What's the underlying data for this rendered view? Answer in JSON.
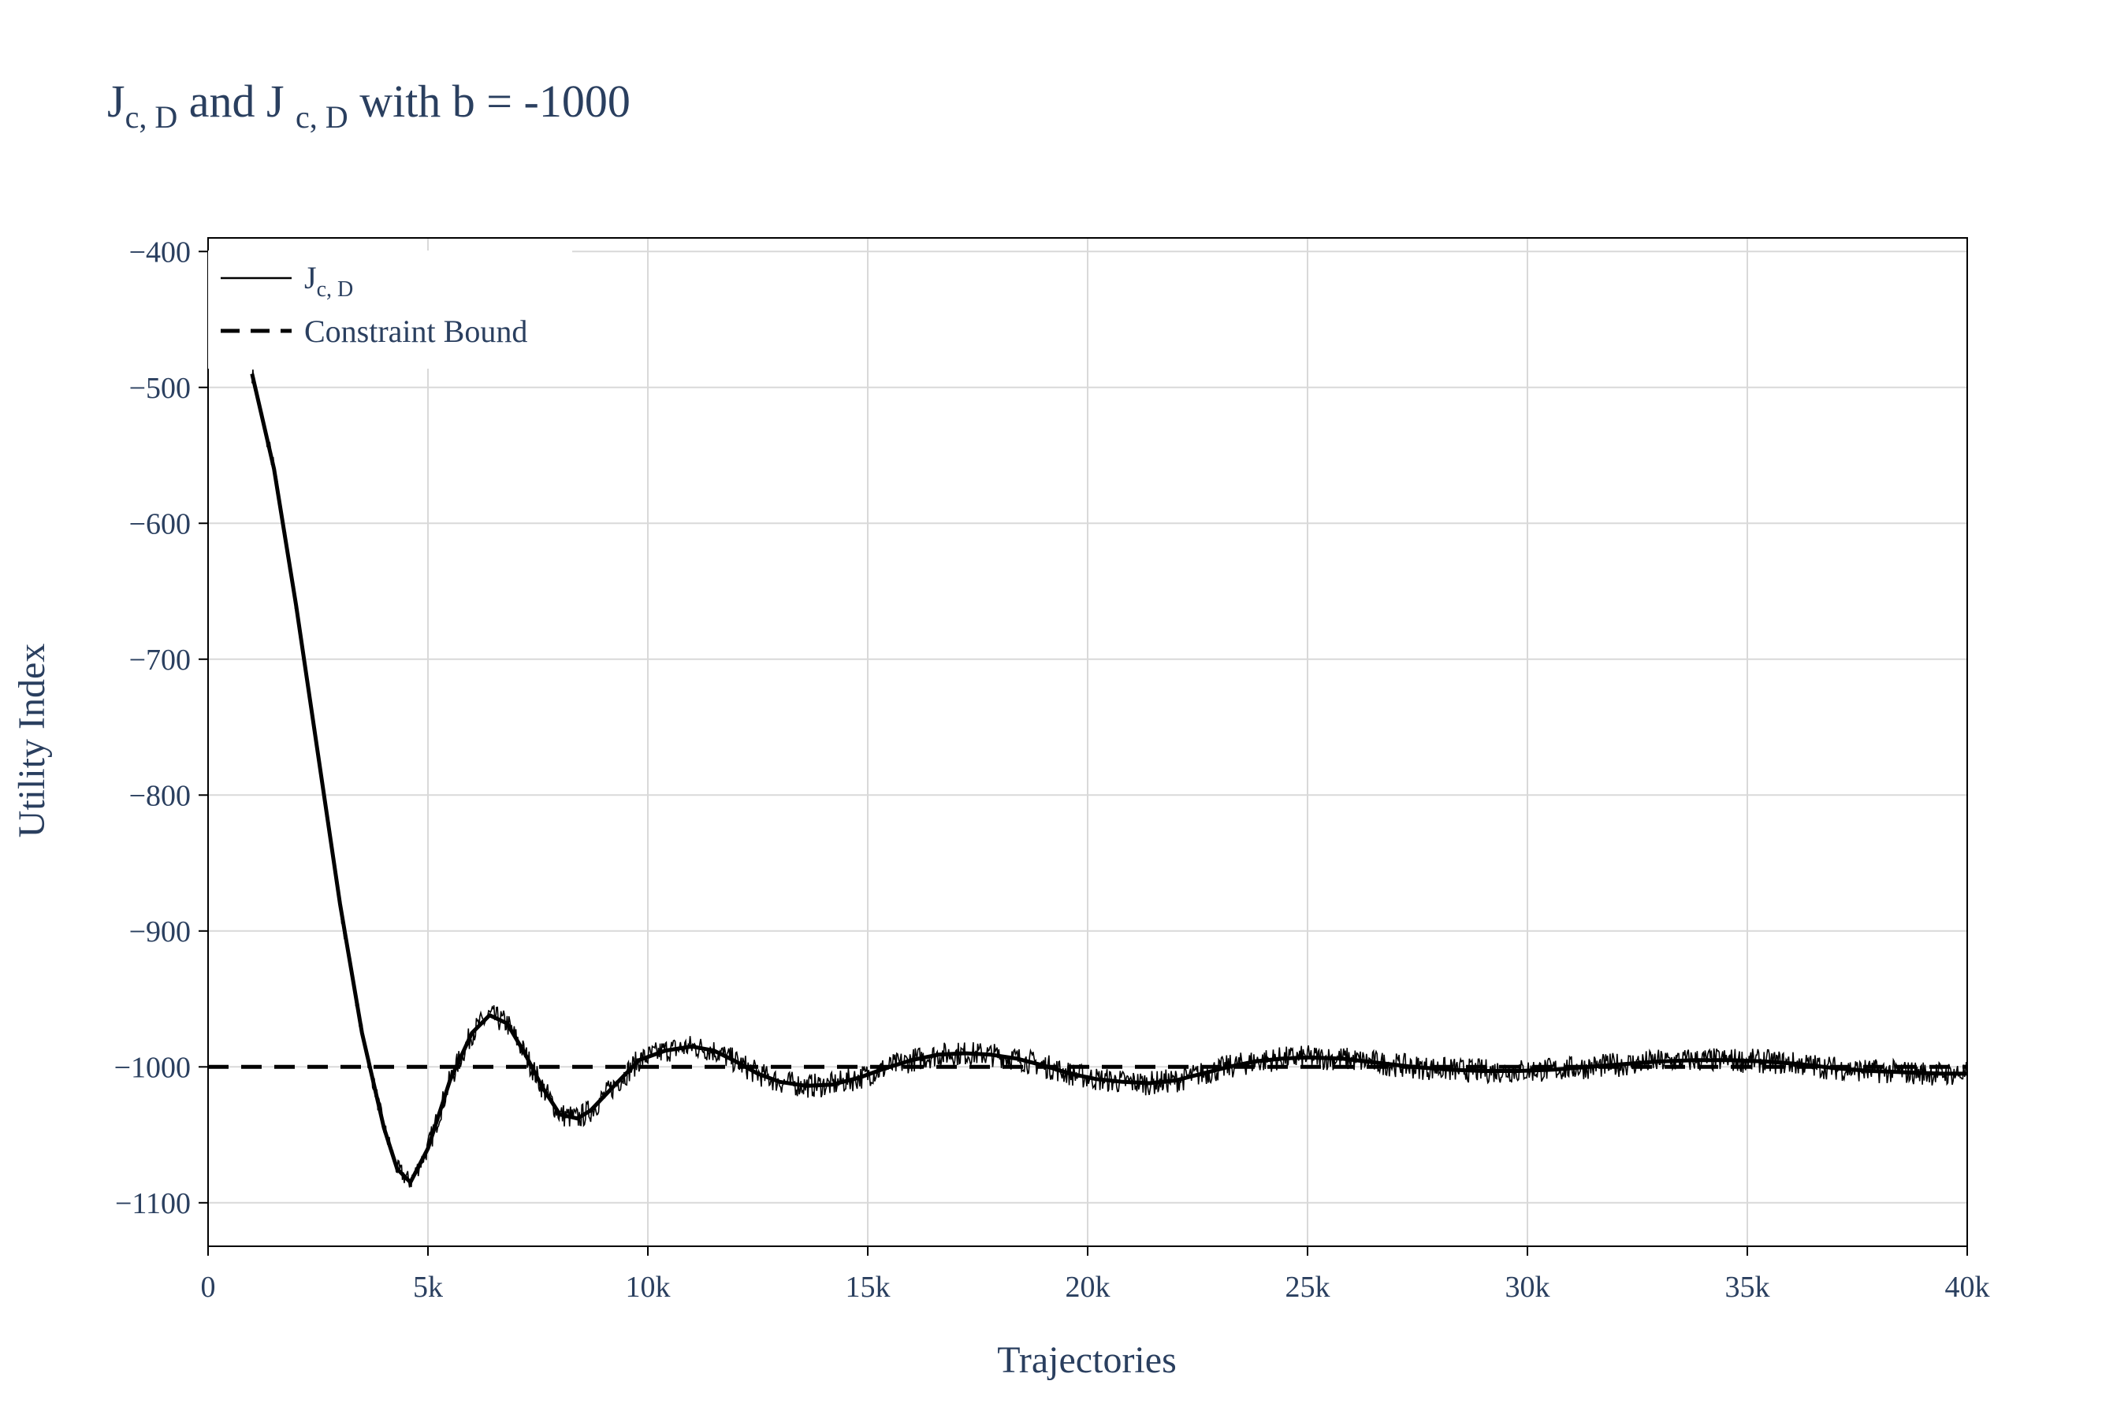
{
  "chart_data": {
    "type": "line",
    "title": {
      "main": "J",
      "sub1": "c, D",
      "mid": " and J ",
      "sub2": "c, D",
      "tail": "  with b = -1000"
    },
    "xlabel": "Trajectories",
    "ylabel": "Utility Index",
    "xlim": [
      0,
      40000
    ],
    "ylim": [
      -1132,
      -390
    ],
    "x_ticks": [
      0,
      5000,
      10000,
      15000,
      20000,
      25000,
      30000,
      35000,
      40000
    ],
    "x_tick_labels": [
      "0",
      "5k",
      "10k",
      "15k",
      "20k",
      "25k",
      "30k",
      "35k",
      "40k"
    ],
    "y_ticks": [
      -400,
      -500,
      -600,
      -700,
      -800,
      -900,
      -1000,
      -1100
    ],
    "y_tick_labels": [
      "−400",
      "−500",
      "−600",
      "−700",
      "−800",
      "−900",
      "−1000",
      "−1100"
    ],
    "grid": true,
    "legend_position": "top-left",
    "series": [
      {
        "name": "J",
        "name_sub": "c, D",
        "style": "solid",
        "color": "#000000",
        "x": [
          1000,
          1500,
          2000,
          2500,
          3000,
          3500,
          4000,
          4300,
          4600,
          5000,
          5500,
          6000,
          6400,
          6800,
          7200,
          7600,
          8000,
          8400,
          8700,
          9200,
          9800,
          10400,
          11000,
          11500,
          12000,
          12500,
          13000,
          13600,
          14200,
          14800,
          15400,
          16000,
          16600,
          17200,
          17800,
          18400,
          19000,
          19600,
          20200,
          20800,
          21400,
          22000,
          22600,
          23200,
          23800,
          24400,
          25000,
          25800,
          26600,
          27400,
          28200,
          29000,
          29800,
          30600,
          31400,
          32200,
          33000,
          33800,
          34600,
          35400,
          36200,
          37000,
          37800,
          38600,
          39400,
          40000
        ],
        "y": [
          -490,
          -560,
          -660,
          -770,
          -880,
          -975,
          -1045,
          -1075,
          -1085,
          -1060,
          -1010,
          -975,
          -962,
          -968,
          -990,
          -1015,
          -1035,
          -1038,
          -1032,
          -1015,
          -995,
          -988,
          -985,
          -988,
          -996,
          -1005,
          -1011,
          -1014,
          -1013,
          -1008,
          -1001,
          -995,
          -991,
          -990,
          -991,
          -994,
          -999,
          -1005,
          -1009,
          -1011,
          -1012,
          -1010,
          -1005,
          -1000,
          -996,
          -994,
          -993,
          -994,
          -997,
          -1000,
          -1002,
          -1003,
          -1003,
          -1002,
          -1000,
          -998,
          -996,
          -995,
          -995,
          -996,
          -998,
          -1001,
          -1003,
          -1004,
          -1005,
          -1005
        ]
      },
      {
        "name": "Constraint Bound",
        "style": "dashed",
        "color": "#000000",
        "x": [
          0,
          40000
        ],
        "y": [
          -1000,
          -1000
        ]
      }
    ]
  }
}
